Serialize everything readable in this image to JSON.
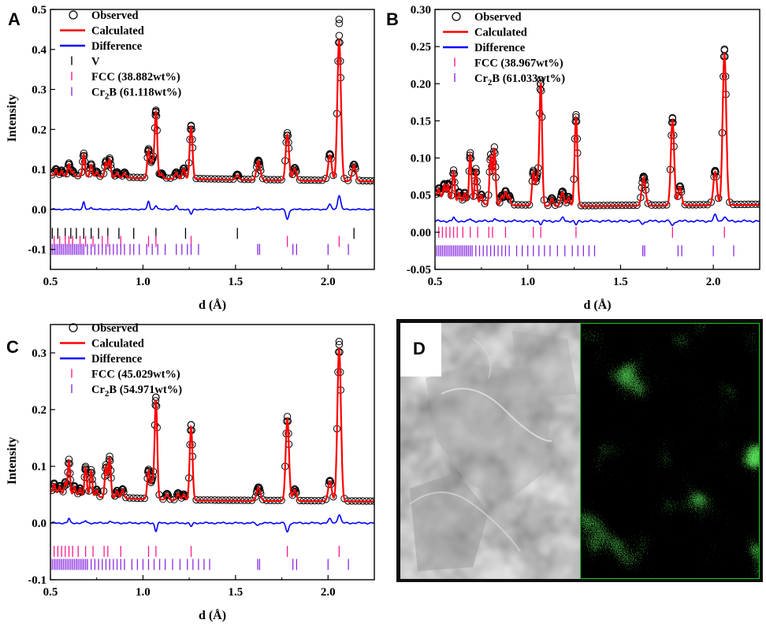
{
  "legend_labels": {
    "observed": "Observed",
    "calculated": "Calculated",
    "difference": "Difference",
    "v": "V"
  },
  "colors": {
    "observed": "#000000",
    "calculated": "#ff0000",
    "difference": "#0000ff",
    "v": "#000000",
    "fcc": "#ff1a8c",
    "cr2b": "#8a2be2",
    "map_green": "#19c419",
    "frame": "#0f0f0f"
  },
  "chart_data": [
    {
      "panel": "A",
      "type": "line",
      "xlabel": "d (Å)",
      "ylabel": "Intensity",
      "xlim": [
        0.5,
        2.25
      ],
      "ylim": [
        -0.15,
        0.5
      ],
      "xticks": [
        "0.5",
        "1.0",
        "1.5",
        "2.0"
      ],
      "yticks": [
        "-0.1",
        "0.0",
        "0.1",
        "0.2",
        "0.3",
        "0.4",
        "0.5"
      ],
      "xtick_values": [
        0.5,
        1.0,
        1.5,
        2.0
      ],
      "ytick_values": [
        -0.1,
        0.0,
        0.1,
        0.2,
        0.3,
        0.4,
        0.5
      ],
      "legend_phases": [
        {
          "key": "v",
          "label": "V"
        },
        {
          "key": "fcc",
          "label": "FCC (38.882wt%)"
        },
        {
          "key": "cr2b",
          "label": "Cr",
          "sub": "2",
          "suffix": "B (61.118wt%)"
        }
      ],
      "background": [
        [
          0.5,
          0.085
        ],
        [
          1.0,
          0.078
        ],
        [
          1.5,
          0.074
        ],
        [
          2.25,
          0.07
        ]
      ],
      "peaks": [
        [
          0.53,
          0.015
        ],
        [
          0.56,
          0.012
        ],
        [
          0.6,
          0.03
        ],
        [
          0.62,
          0.012
        ],
        [
          0.68,
          0.055
        ],
        [
          0.72,
          0.03
        ],
        [
          0.75,
          0.012
        ],
        [
          0.8,
          0.038
        ],
        [
          0.82,
          0.045
        ],
        [
          0.86,
          0.012
        ],
        [
          0.9,
          0.012
        ],
        [
          1.03,
          0.07
        ],
        [
          1.05,
          0.04
        ],
        [
          1.07,
          0.165
        ],
        [
          1.1,
          0.012
        ],
        [
          1.18,
          0.015
        ],
        [
          1.22,
          0.025
        ],
        [
          1.26,
          0.13
        ],
        [
          1.51,
          0.012
        ],
        [
          1.62,
          0.035
        ],
        [
          1.63,
          0.02
        ],
        [
          1.78,
          0.115
        ],
        [
          1.82,
          0.03
        ],
        [
          2.01,
          0.065
        ],
        [
          2.06,
          0.355
        ],
        [
          2.14,
          0.04
        ]
      ],
      "observed_extra": [
        [
          2.06,
          0.475
        ],
        [
          2.06,
          0.465
        ],
        [
          1.07,
          0.245
        ],
        [
          1.26,
          0.208
        ]
      ],
      "difference_offset": 0.0,
      "difference_peaks": [
        [
          0.68,
          0.018
        ],
        [
          0.72,
          0.006
        ],
        [
          1.03,
          0.02
        ],
        [
          1.07,
          0.01
        ],
        [
          1.18,
          0.008
        ],
        [
          1.26,
          -0.012
        ],
        [
          1.62,
          0.006
        ],
        [
          1.78,
          -0.025
        ],
        [
          2.01,
          0.012
        ],
        [
          2.06,
          0.035
        ]
      ],
      "phase_ticks": {
        "v": {
          "y": -0.06,
          "positions": [
            0.51,
            0.54,
            0.58,
            0.61,
            0.64,
            0.68,
            0.72,
            0.76,
            0.81,
            0.87,
            0.95,
            1.07,
            1.23,
            1.51,
            2.14
          ]
        },
        "fcc": {
          "y": -0.08,
          "positions": [
            0.52,
            0.55,
            0.58,
            0.6,
            0.62,
            0.66,
            0.69,
            0.73,
            0.78,
            0.81,
            0.88,
            1.03,
            1.07,
            1.26,
            1.78,
            2.06
          ]
        },
        "cr2b": {
          "y": -0.1,
          "positions": [
            0.5,
            0.51,
            0.52,
            0.53,
            0.54,
            0.55,
            0.56,
            0.57,
            0.58,
            0.59,
            0.6,
            0.61,
            0.62,
            0.63,
            0.64,
            0.65,
            0.66,
            0.67,
            0.68,
            0.7,
            0.72,
            0.74,
            0.76,
            0.78,
            0.8,
            0.82,
            0.84,
            0.86,
            0.88,
            0.9,
            0.93,
            0.95,
            0.98,
            1.02,
            1.05,
            1.08,
            1.12,
            1.18,
            1.21,
            1.24,
            1.26,
            1.3,
            1.62,
            1.63,
            1.81,
            1.83,
            2.0,
            2.11
          ]
        }
      }
    },
    {
      "panel": "B",
      "type": "line",
      "xlabel": "d (Å)",
      "ylabel": "",
      "xlim": [
        0.5,
        2.25
      ],
      "ylim": [
        -0.05,
        0.3
      ],
      "xticks": [
        "0.5",
        "1.0",
        "1.5",
        "2.0"
      ],
      "yticks": [
        "-0.05",
        "0.00",
        "0.05",
        "0.10",
        "0.15",
        "0.20",
        "0.25",
        "0.30"
      ],
      "xtick_values": [
        0.5,
        1.0,
        1.5,
        2.0
      ],
      "ytick_values": [
        -0.05,
        0.0,
        0.05,
        0.1,
        0.15,
        0.2,
        0.25,
        0.3
      ],
      "legend_phases": [
        {
          "key": "fcc",
          "label": "FCC (38.967wt%)"
        },
        {
          "key": "cr2b",
          "label": "Cr",
          "sub": "2",
          "suffix": "B (61.033wt%)"
        }
      ],
      "background": [
        [
          0.5,
          0.05
        ],
        [
          0.6,
          0.042
        ],
        [
          0.8,
          0.037
        ],
        [
          1.2,
          0.035
        ],
        [
          2.25,
          0.037
        ]
      ],
      "peaks": [
        [
          0.52,
          0.01
        ],
        [
          0.55,
          0.018
        ],
        [
          0.57,
          0.02
        ],
        [
          0.6,
          0.04
        ],
        [
          0.63,
          0.012
        ],
        [
          0.66,
          0.012
        ],
        [
          0.69,
          0.065
        ],
        [
          0.72,
          0.045
        ],
        [
          0.75,
          0.012
        ],
        [
          0.8,
          0.065
        ],
        [
          0.82,
          0.075
        ],
        [
          0.86,
          0.012
        ],
        [
          0.88,
          0.018
        ],
        [
          0.9,
          0.012
        ],
        [
          1.03,
          0.045
        ],
        [
          1.05,
          0.035
        ],
        [
          1.07,
          0.165
        ],
        [
          1.13,
          0.01
        ],
        [
          1.18,
          0.008
        ],
        [
          1.19,
          0.015
        ],
        [
          1.22,
          0.012
        ],
        [
          1.26,
          0.12
        ],
        [
          1.62,
          0.025
        ],
        [
          1.63,
          0.02
        ],
        [
          1.78,
          0.115
        ],
        [
          1.82,
          0.025
        ],
        [
          2.01,
          0.045
        ],
        [
          2.06,
          0.205
        ]
      ],
      "observed_extra": [
        [
          2.06,
          0.245
        ],
        [
          1.07,
          0.2
        ],
        [
          1.26,
          0.155
        ],
        [
          1.78,
          0.153
        ]
      ],
      "difference_offset": 0.015,
      "difference_peaks": [
        [
          0.6,
          0.005
        ],
        [
          0.69,
          0.003
        ],
        [
          0.82,
          0.004
        ],
        [
          1.07,
          -0.004
        ],
        [
          1.19,
          0.005
        ],
        [
          1.26,
          -0.005
        ],
        [
          1.62,
          -0.004
        ],
        [
          1.78,
          -0.006
        ],
        [
          2.01,
          0.008
        ],
        [
          2.06,
          0.006
        ]
      ],
      "phase_ticks": {
        "fcc": {
          "y": 0.0,
          "positions": [
            0.52,
            0.54,
            0.56,
            0.58,
            0.6,
            0.62,
            0.65,
            0.69,
            0.73,
            0.79,
            0.81,
            0.88,
            1.03,
            1.07,
            1.26,
            1.78,
            2.06
          ]
        },
        "cr2b": {
          "y": -0.025,
          "positions": [
            0.5,
            0.51,
            0.52,
            0.53,
            0.54,
            0.55,
            0.56,
            0.57,
            0.58,
            0.59,
            0.6,
            0.61,
            0.62,
            0.63,
            0.64,
            0.65,
            0.66,
            0.67,
            0.68,
            0.69,
            0.7,
            0.72,
            0.74,
            0.76,
            0.78,
            0.8,
            0.82,
            0.84,
            0.86,
            0.88,
            0.9,
            0.94,
            0.97,
            1.0,
            1.03,
            1.06,
            1.09,
            1.12,
            1.16,
            1.2,
            1.24,
            1.27,
            1.3,
            1.33,
            1.36,
            1.62,
            1.63,
            1.81,
            1.83,
            2.0,
            2.11
          ]
        }
      }
    },
    {
      "panel": "C",
      "type": "line",
      "xlabel": "d (Å)",
      "ylabel": "Intensity",
      "xlim": [
        0.5,
        2.25
      ],
      "ylim": [
        -0.1,
        0.35
      ],
      "xticks": [
        "0.5",
        "1.0",
        "1.5",
        "2.0"
      ],
      "yticks": [
        "-0.1",
        "0.0",
        "0.1",
        "0.2",
        "0.3"
      ],
      "xtick_values": [
        0.5,
        1.0,
        1.5,
        2.0
      ],
      "ytick_values": [
        -0.1,
        0.0,
        0.1,
        0.2,
        0.3
      ],
      "legend_phases": [
        {
          "key": "fcc",
          "label": "FCC (45.029wt%)"
        },
        {
          "key": "cr2b",
          "label": "Cr",
          "sub": "2",
          "suffix": "B (54.971wt%)"
        }
      ],
      "background": [
        [
          0.5,
          0.055
        ],
        [
          0.6,
          0.05
        ],
        [
          0.8,
          0.045
        ],
        [
          1.2,
          0.04
        ],
        [
          2.25,
          0.038
        ]
      ],
      "peaks": [
        [
          0.52,
          0.015
        ],
        [
          0.55,
          0.012
        ],
        [
          0.58,
          0.02
        ],
        [
          0.6,
          0.06
        ],
        [
          0.63,
          0.015
        ],
        [
          0.66,
          0.012
        ],
        [
          0.69,
          0.05
        ],
        [
          0.72,
          0.045
        ],
        [
          0.75,
          0.012
        ],
        [
          0.8,
          0.055
        ],
        [
          0.82,
          0.07
        ],
        [
          0.86,
          0.012
        ],
        [
          0.89,
          0.015
        ],
        [
          1.03,
          0.05
        ],
        [
          1.05,
          0.03
        ],
        [
          1.07,
          0.175
        ],
        [
          1.13,
          0.01
        ],
        [
          1.19,
          0.012
        ],
        [
          1.22,
          0.01
        ],
        [
          1.26,
          0.13
        ],
        [
          1.62,
          0.015
        ],
        [
          1.63,
          0.012
        ],
        [
          1.78,
          0.145
        ],
        [
          1.82,
          0.02
        ],
        [
          2.01,
          0.035
        ],
        [
          2.06,
          0.27
        ]
      ],
      "observed_extra": [
        [
          2.06,
          0.32
        ],
        [
          1.07,
          0.222
        ],
        [
          1.26,
          0.173
        ]
      ],
      "difference_offset": 0.0,
      "difference_peaks": [
        [
          0.6,
          0.008
        ],
        [
          0.69,
          0.004
        ],
        [
          0.82,
          0.004
        ],
        [
          1.07,
          -0.014
        ],
        [
          1.26,
          -0.006
        ],
        [
          1.62,
          -0.004
        ],
        [
          1.78,
          -0.016
        ],
        [
          2.01,
          0.007
        ],
        [
          2.06,
          0.015
        ]
      ],
      "phase_ticks": {
        "fcc": {
          "y": -0.05,
          "positions": [
            0.52,
            0.54,
            0.56,
            0.58,
            0.6,
            0.62,
            0.65,
            0.69,
            0.73,
            0.79,
            0.81,
            0.88,
            1.03,
            1.07,
            1.26,
            1.78,
            2.06
          ]
        },
        "cr2b": {
          "y": -0.073,
          "positions": [
            0.5,
            0.51,
            0.52,
            0.53,
            0.54,
            0.55,
            0.56,
            0.57,
            0.58,
            0.59,
            0.6,
            0.61,
            0.62,
            0.63,
            0.64,
            0.65,
            0.66,
            0.67,
            0.68,
            0.69,
            0.7,
            0.72,
            0.74,
            0.76,
            0.78,
            0.8,
            0.82,
            0.84,
            0.86,
            0.88,
            0.9,
            0.94,
            0.97,
            1.0,
            1.03,
            1.06,
            1.09,
            1.12,
            1.16,
            1.2,
            1.24,
            1.27,
            1.3,
            1.33,
            1.36,
            1.62,
            1.63,
            1.81,
            1.83,
            2.0,
            2.11
          ]
        }
      }
    }
  ],
  "panel_d": {
    "label": "D"
  }
}
